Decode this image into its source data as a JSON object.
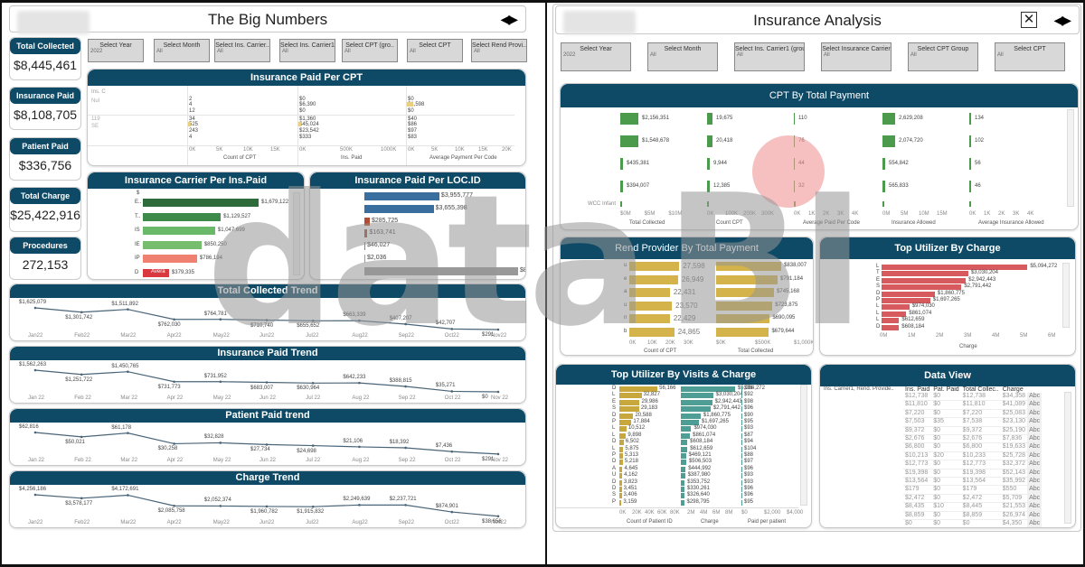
{
  "left": {
    "title": "The Big Numbers",
    "nav_arrows": "◀▶",
    "filters": [
      {
        "label": "Select Year",
        "value": "2022"
      },
      {
        "label": "Select Month",
        "value": "All"
      },
      {
        "label": "Select Ins. Carrier..",
        "value": "All"
      },
      {
        "label": "Select Ins. Carrier1",
        "value": "All"
      },
      {
        "label": "Select CPT (gro..",
        "value": "All"
      },
      {
        "label": "Select CPT",
        "value": "All"
      },
      {
        "label": "Select Rend Provi..",
        "value": "All"
      }
    ],
    "kpis": [
      {
        "label": "Total Collected",
        "value": "$8,445,461"
      },
      {
        "label": "Insurance Paid",
        "value": "$8,108,705"
      },
      {
        "label": "Patient Paid",
        "value": "$336,756"
      },
      {
        "label": "Total Charge",
        "value": "$25,422,916"
      },
      {
        "label": "Procedures",
        "value": "272,153"
      }
    ],
    "ins_paid_per_cpt": {
      "title": "Insurance Paid Per CPT",
      "row_headers": [
        "Ins. C",
        "Nul",
        "119",
        "SE"
      ],
      "count_values": [
        "2",
        "4",
        "12",
        "34",
        "525",
        "243",
        "4"
      ],
      "ins_paid_values": [
        "$0",
        "$6,390",
        "$0",
        "$1,360",
        "$45,024",
        "$23,542",
        "$333"
      ],
      "avg_values": [
        "$0",
        "$1,598",
        "$0",
        "$40",
        "$86",
        "$97",
        "$83"
      ],
      "count_axis": [
        "0K",
        "5K",
        "10K",
        "15K"
      ],
      "ins_axis": [
        "0K",
        "500K",
        "1000K"
      ],
      "avg_axis": [
        "0K",
        "5K",
        "10K",
        "15K",
        "20K"
      ],
      "count_label": "Count of CPT",
      "ins_label": "Ins. Paid",
      "avg_label": "Average Payment Per Code"
    },
    "carrier": {
      "title": "Insurance Carrier Per Ins.Paid",
      "header": "$",
      "rows": [
        {
          "code": "E..",
          "value": "$1,679,122",
          "amount": 1679122,
          "color": "#2e6b3a"
        },
        {
          "code": "T..",
          "value": "$1,129,527",
          "amount": 1129527,
          "color": "#3e8a48"
        },
        {
          "code": "IS",
          "value": "$1,047,699",
          "amount": 1047699,
          "color": "#6ab96a"
        },
        {
          "code": "IE",
          "value": "$850,250",
          "amount": 850250,
          "color": "#76be6e"
        },
        {
          "code": "IP",
          "value": "$786,194",
          "amount": 786194,
          "color": "#f08070"
        },
        {
          "code": "D",
          "value": "$379,335",
          "amount": 379335,
          "color": "#d9383e",
          "note": "Avera"
        }
      ]
    },
    "loc": {
      "title": "Insurance Paid Per LOC.ID",
      "rows": [
        {
          "value": "$3,955,777",
          "amount": 3955777,
          "color": "#3a6e9e"
        },
        {
          "value": "$3,655,398",
          "amount": 3655398,
          "color": "#3a6e9e"
        },
        {
          "value": "$285,725",
          "amount": 285725,
          "color": "#b34a32"
        },
        {
          "value": "$163,741",
          "amount": 163741,
          "color": "#9a4a32"
        },
        {
          "value": "$46,027",
          "amount": 46027,
          "color": "#b07060"
        },
        {
          "value": "$2,036",
          "amount": 2036,
          "color": "#999999"
        },
        {
          "value": "$8,108,705",
          "amount": 8108705,
          "color": "#999999"
        }
      ]
    },
    "trends": [
      {
        "title": "Total Collected Trend",
        "months": [
          "Jan22",
          "Feb22",
          "Mar22",
          "Apr22",
          "May22",
          "Jun22",
          "Jul22",
          "Aug22",
          "Sep22",
          "Oct22",
          "Nov22"
        ],
        "labels": [
          "$1,625,079",
          "$1,301,742",
          "$1,511,892",
          "$762,030",
          "$764,781",
          "$710,740",
          "$655,652",
          "$663,339",
          "$407,207",
          "$42,707",
          "$291"
        ],
        "values": [
          1625079,
          1301742,
          1511892,
          762030,
          764781,
          710740,
          655652,
          663339,
          407207,
          42707,
          291
        ]
      },
      {
        "title": "Insurance Paid Trend",
        "months": [
          "Jan 22",
          "Feb 22",
          "Mar 22",
          "Apr 22",
          "May 22",
          "Jun 22",
          "Jul 22",
          "Aug 22",
          "Sep 22",
          "Oct 22",
          "Nov 22"
        ],
        "labels": [
          "$1,562,263",
          "$1,251,722",
          "$1,450,765",
          "$731,773",
          "$731,952",
          "$683,007",
          "$630,964",
          "$642,233",
          "$388,815",
          "$35,271",
          "$0"
        ],
        "values": [
          1562263,
          1251722,
          1450765,
          731773,
          731952,
          683007,
          630964,
          642233,
          388815,
          35271,
          0
        ]
      },
      {
        "title": "Patient Paid trend",
        "months": [
          "Jan 22",
          "Feb 22",
          "Mar 22",
          "Apr 22",
          "May 22",
          "Jun 22",
          "Jul 22",
          "Aug 22",
          "Sep 22",
          "Oct 22",
          "Nov 22"
        ],
        "labels": [
          "$62,816",
          "$50,021",
          "$61,178",
          "$30,258",
          "$32,828",
          "$27,734",
          "$24,698",
          "$21,106",
          "$18,392",
          "$7,436",
          "$291"
        ],
        "values": [
          62816,
          50021,
          61178,
          30258,
          32828,
          27734,
          24698,
          21106,
          18392,
          7436,
          291
        ]
      },
      {
        "title": "Charge Trend",
        "months": [
          "Jan22",
          "Feb22",
          "Mar22",
          "Apr22",
          "May22",
          "Jun22",
          "Jul22",
          "Aug22",
          "Sep22",
          "Oct22",
          "Nov22"
        ],
        "labels": [
          "$4,256,186",
          "$3,578,177",
          "$4,172,691",
          "$2,085,758",
          "$2,052,374",
          "$1,960,782",
          "$1,915,832",
          "$2,249,639",
          "$2,237,721",
          "$874,901",
          "$38,656"
        ],
        "values": [
          4256186,
          3578177,
          4172691,
          2085758,
          2052374,
          1960782,
          1915832,
          2249639,
          2237721,
          874901,
          38656
        ]
      }
    ]
  },
  "right": {
    "title": "Insurance Analysis",
    "close_icon": "✕",
    "nav_arrows": "◀▶",
    "filters": [
      {
        "label": "Select Year",
        "value": "2022"
      },
      {
        "label": "Select Month",
        "value": "All"
      },
      {
        "label": "Select Ins. Carrier1 (grou..",
        "value": "All"
      },
      {
        "label": "Select Insurance Carrier",
        "value": "All"
      },
      {
        "label": "Select CPT Group",
        "value": "All"
      },
      {
        "label": "Select  CPT",
        "value": "All"
      }
    ],
    "cpt_total": {
      "title": "CPT By Total Payment",
      "row_last_label": "WCC Infant",
      "columns": [
        {
          "label": "Total Collected",
          "axis": [
            "$0M",
            "$5M",
            "$10M"
          ],
          "values": [
            "$2,156,351",
            "$1,548,678",
            "$435,381",
            "$394,007"
          ],
          "widths": [
            20,
            20,
            3,
            3
          ]
        },
        {
          "label": "Count CPT",
          "axis": [
            "0K",
            "100K",
            "200K",
            "300K"
          ],
          "values": [
            "19,675",
            "20,418",
            "9,944",
            "12,385"
          ],
          "widths": [
            6,
            6,
            3,
            3
          ]
        },
        {
          "label": "Average Paid Per Code",
          "axis": [
            "0K",
            "1K",
            "2K",
            "3K",
            "4K"
          ],
          "values": [
            "110",
            "76",
            "44",
            "32"
          ],
          "widths": [
            1,
            1,
            1,
            1
          ]
        },
        {
          "label": "Insurance Allowed",
          "axis": [
            "0M",
            "5M",
            "10M",
            "15M"
          ],
          "values": [
            "2,629,208",
            "2,074,720",
            "554,842",
            "565,833"
          ],
          "widths": [
            14,
            14,
            3,
            3
          ]
        },
        {
          "label": "Average Insurance Allowed",
          "axis": [
            "0K",
            "1K",
            "2K",
            "3K",
            "4K"
          ],
          "values": [
            "134",
            "102",
            "56",
            "46"
          ],
          "widths": [
            2,
            2,
            2,
            2
          ]
        }
      ]
    },
    "rend_provider": {
      "title": "Rend Provider By Total Payment",
      "codes": [
        "u",
        "e",
        "a",
        "u",
        "n",
        "b"
      ],
      "counts": [
        "27,598",
        "26,949",
        "22,431",
        "23,570",
        "22,429",
        "24,865"
      ],
      "count_nums": [
        27598,
        26949,
        22431,
        23570,
        22429,
        24865
      ],
      "totals": [
        "$838,007",
        "$791,184",
        "$745,168",
        "$723,875",
        "$690,095",
        "$679,644"
      ],
      "total_nums": [
        838007,
        791184,
        745168,
        723875,
        690095,
        679644
      ],
      "count_axis": [
        "0K",
        "10K",
        "20K",
        "30K"
      ],
      "total_axis": [
        "$0K",
        "$500K",
        "$1,000K"
      ],
      "count_label": "Count of CPT",
      "total_label": "Total Collected"
    },
    "top_charge": {
      "title": "Top Utilizer By Charge",
      "codes": [
        "L",
        "T",
        "E",
        "S",
        "D",
        "P",
        "L",
        "L",
        "L",
        "D"
      ],
      "values": [
        "$5,094,272",
        "$3,030,204",
        "$2,942,443",
        "$2,791,442",
        "$1,860,775",
        "$1,697,265",
        "$974,030",
        "$861,074",
        "$612,659",
        "$608,184"
      ],
      "nums": [
        5094272,
        3030204,
        2942443,
        2791442,
        1860775,
        1697265,
        974030,
        861074,
        612659,
        608184
      ],
      "axis": [
        "0M",
        "1M",
        "2M",
        "3M",
        "4M",
        "5M",
        "6M"
      ],
      "axis_label": "Charge"
    },
    "top_visits": {
      "title": "Top Utilizer By Visits & Charge",
      "codes": [
        "D",
        "L",
        "E",
        "S",
        "D",
        "P",
        "L",
        "L",
        "D",
        "L",
        "P",
        "D",
        "A",
        "U",
        "D",
        "D",
        "S",
        "P"
      ],
      "counts": [
        "56,166",
        "32,827",
        "29,986",
        "29,183",
        "20,588",
        "17,884",
        "10,512",
        "9,898",
        "6,502",
        "5,875",
        "5,313",
        "5,218",
        "4,645",
        "4,162",
        "3,823",
        "3,451",
        "3,406",
        "3,159"
      ],
      "count_nums": [
        56166,
        32827,
        29986,
        29183,
        20588,
        17884,
        10512,
        9898,
        6502,
        5875,
        5313,
        5218,
        4645,
        4162,
        3823,
        3451,
        3406,
        3159
      ],
      "charges": [
        "$5,094,272",
        "$3,030,204",
        "$2,942,443",
        "$2,791,442",
        "$1,860,775",
        "$1,697,265",
        "$974,030",
        "$861,074",
        "$608,184",
        "$612,659",
        "$469,121",
        "$506,503",
        "$444,992",
        "$387,980",
        "$353,752",
        "$330,261",
        "$326,640",
        "$298,795"
      ],
      "charge_nums": [
        5094272,
        3030204,
        2942443,
        2791442,
        1860775,
        1697265,
        974030,
        861074,
        608184,
        612659,
        469121,
        506503,
        444992,
        387980,
        353752,
        330261,
        326640,
        298795
      ],
      "paid": [
        "$91",
        "$92",
        "$98",
        "$96",
        "$90",
        "$95",
        "$93",
        "$87",
        "$94",
        "$104",
        "$88",
        "$97",
        "$96",
        "$93",
        "$93",
        "$96",
        "$96",
        "$95"
      ],
      "count_axis": [
        "0K",
        "20K",
        "40K",
        "60K",
        "80K"
      ],
      "charge_axis": [
        "2M",
        "4M",
        "6M",
        "8M"
      ],
      "paid_axis": [
        "$0",
        "$2,000",
        "$4,000"
      ],
      "count_label": "Count of Patient ID",
      "charge_label": "Charge",
      "paid_label": "Paid per patient"
    },
    "data_view": {
      "title": "Data View",
      "first_header": "Ins. Carrier1, Rend. Provide..",
      "headers": [
        "Ins. Paid",
        "Pat. Paid",
        "Total Collec..",
        "Charge",
        ""
      ],
      "rows": [
        [
          "$12,738",
          "$0",
          "$12,738",
          "$34,358",
          "Abc"
        ],
        [
          "$11,810",
          "$0",
          "$11,810",
          "$41,089",
          "Abc"
        ],
        [
          "$7,220",
          "$0",
          "$7,220",
          "$25,083",
          "Abc"
        ],
        [
          "$7,503",
          "$35",
          "$7,538",
          "$23,130",
          "Abc"
        ],
        [
          "$9,372",
          "$0",
          "$9,372",
          "$25,190",
          "Abc"
        ],
        [
          "$2,676",
          "$0",
          "$2,676",
          "$7,836",
          "Abc"
        ],
        [
          "$6,800",
          "$0",
          "$6,800",
          "$19,633",
          "Abc"
        ],
        [
          "$10,213",
          "$20",
          "$10,233",
          "$25,728",
          "Abc"
        ],
        [
          "$12,773",
          "$0",
          "$12,773",
          "$32,372",
          "Abc"
        ],
        [
          "$19,398",
          "$0",
          "$19,398",
          "$52,143",
          "Abc"
        ],
        [
          "$13,564",
          "$0",
          "$13,564",
          "$35,992",
          "Abc"
        ],
        [
          "$179",
          "$0",
          "$179",
          "$550",
          "Abc"
        ],
        [
          "$2,472",
          "$0",
          "$2,472",
          "$5,709",
          "Abc"
        ],
        [
          "$8,435",
          "$10",
          "$8,445",
          "$21,553",
          "Abc"
        ],
        [
          "$8,859",
          "$0",
          "$8,859",
          "$26,974",
          "Abc"
        ],
        [
          "$0",
          "$0",
          "$0",
          "$4,350",
          "Abc"
        ],
        [
          "$0",
          "$0",
          "$0",
          "$2,445",
          "Abc"
        ],
        [
          "$0",
          "$0",
          "$0",
          "$3,845",
          "Abc"
        ],
        [
          "$707",
          "$40",
          "$747",
          "$2,143",
          "Abc"
        ],
        [
          "$1,236",
          "$281",
          "$1,517",
          "$4,701",
          "Abc"
        ]
      ]
    }
  },
  "watermark": {
    "text1": "data",
    "text2": "BI"
  }
}
